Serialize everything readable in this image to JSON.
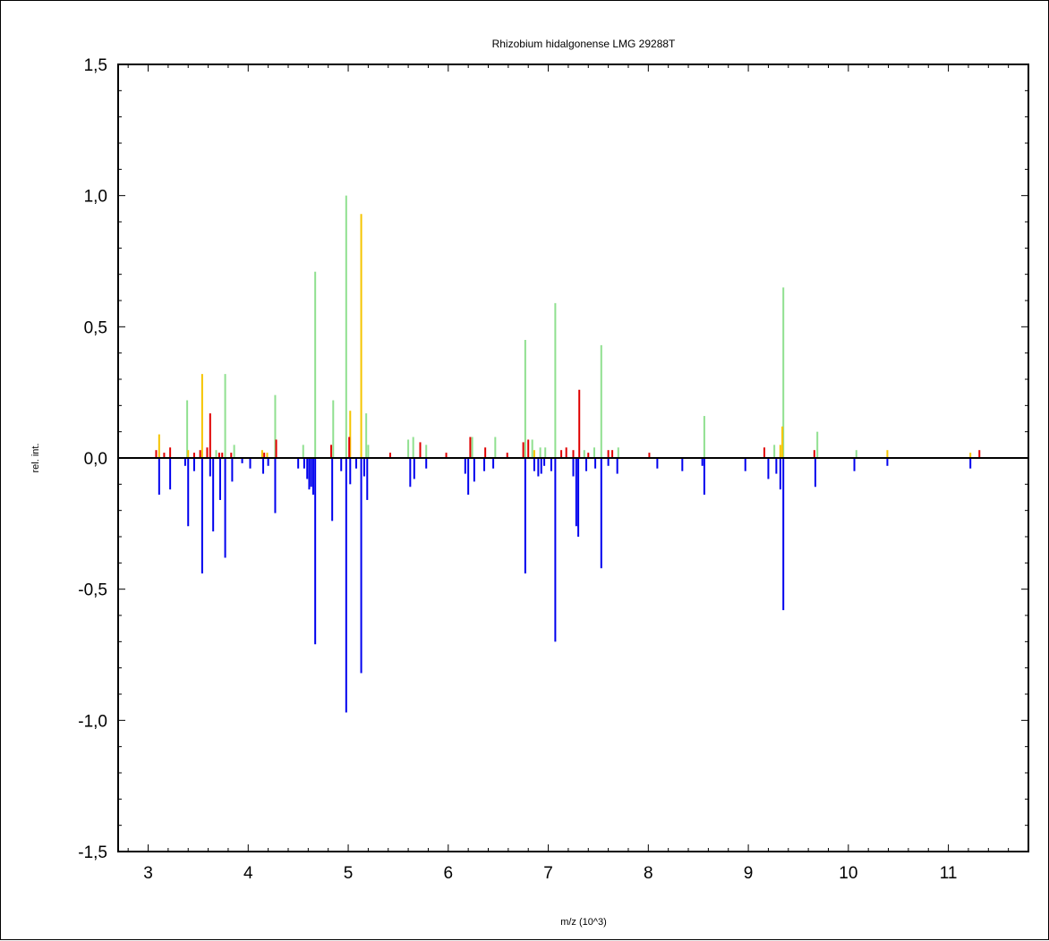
{
  "chart_data": {
    "type": "bar",
    "title": "Rhizobium hidalgonense LMG 29288T",
    "xlabel": "m/z (10^3)",
    "ylabel": "rel. int.",
    "xlim": [
      2.7,
      11.8
    ],
    "ylim": [
      -1.5,
      1.5
    ],
    "x_ticks": [
      3,
      4,
      5,
      6,
      7,
      8,
      9,
      10,
      11
    ],
    "x_tick_labels": [
      "3",
      "4",
      "5",
      "6",
      "7",
      "8",
      "9",
      "10",
      "11"
    ],
    "y_ticks": [
      1.5,
      1.0,
      0.5,
      0.0,
      -0.5,
      -1.0,
      -1.5
    ],
    "y_tick_labels": [
      "1,5",
      "1,0",
      "0,5",
      "0,0",
      "-0,5",
      "-1,0",
      "-1,5"
    ],
    "grid": false,
    "legend": "none",
    "colors": {
      "green": "#90e090",
      "yellow": "#f5c400",
      "red": "#e00000",
      "blue": "#0000ee",
      "axis": "#000000"
    },
    "series": [
      {
        "color_key": "green",
        "x": [
          3.39,
          3.68,
          3.77,
          3.86,
          4.27,
          4.55,
          4.67,
          4.85,
          4.98,
          5.18,
          5.2,
          5.6,
          5.65,
          5.78,
          6.24,
          6.47,
          6.77,
          6.84,
          6.92,
          6.97,
          7.07,
          7.36,
          7.46,
          7.53,
          7.7,
          8.56,
          9.26,
          9.35,
          9.69,
          10.08
        ],
        "values": [
          0.22,
          0.03,
          0.32,
          0.05,
          0.24,
          0.05,
          0.71,
          0.22,
          1.0,
          0.17,
          0.05,
          0.07,
          0.08,
          0.05,
          0.08,
          0.08,
          0.45,
          0.07,
          0.04,
          0.04,
          0.59,
          0.03,
          0.04,
          0.43,
          0.04,
          0.16,
          0.05,
          0.65,
          0.1,
          0.03
        ]
      },
      {
        "color_key": "yellow",
        "x": [
          3.11,
          3.4,
          3.54,
          4.14,
          4.19,
          5.02,
          5.13,
          6.86,
          9.32,
          9.34,
          10.39,
          11.22
        ],
        "values": [
          0.09,
          0.03,
          0.32,
          0.03,
          0.02,
          0.18,
          0.93,
          0.03,
          0.05,
          0.12,
          0.03,
          0.02
        ]
      },
      {
        "color_key": "red",
        "x": [
          3.08,
          3.16,
          3.22,
          3.46,
          3.52,
          3.59,
          3.62,
          3.71,
          3.74,
          3.83,
          4.16,
          4.28,
          4.83,
          5.01,
          5.42,
          5.72,
          5.98,
          6.22,
          6.37,
          6.59,
          6.75,
          6.8,
          7.13,
          7.18,
          7.25,
          7.31,
          7.4,
          7.6,
          7.64,
          8.01,
          9.16,
          9.66,
          11.31
        ],
        "values": [
          0.03,
          0.02,
          0.04,
          0.02,
          0.03,
          0.04,
          0.17,
          0.02,
          0.02,
          0.02,
          0.02,
          0.07,
          0.05,
          0.08,
          0.02,
          0.06,
          0.02,
          0.08,
          0.04,
          0.02,
          0.06,
          0.07,
          0.03,
          0.04,
          0.03,
          0.26,
          0.02,
          0.03,
          0.03,
          0.02,
          0.04,
          0.03,
          0.03
        ]
      },
      {
        "color_key": "blue",
        "x": [
          3.11,
          3.22,
          3.37,
          3.4,
          3.46,
          3.54,
          3.62,
          3.65,
          3.72,
          3.77,
          3.84,
          3.94,
          4.02,
          4.15,
          4.2,
          4.27,
          4.5,
          4.56,
          4.59,
          4.61,
          4.63,
          4.65,
          4.67,
          4.84,
          4.93,
          4.98,
          5.02,
          5.08,
          5.13,
          5.16,
          5.19,
          5.62,
          5.66,
          5.78,
          6.17,
          6.2,
          6.26,
          6.36,
          6.45,
          6.77,
          6.86,
          6.9,
          6.93,
          6.96,
          7.03,
          7.07,
          7.25,
          7.28,
          7.3,
          7.38,
          7.47,
          7.53,
          7.6,
          7.69,
          8.09,
          8.34,
          8.54,
          8.56,
          8.97,
          9.2,
          9.28,
          9.32,
          9.35,
          9.67,
          10.06,
          10.39,
          11.22
        ],
        "values": [
          -0.14,
          -0.12,
          -0.03,
          -0.26,
          -0.05,
          -0.44,
          -0.07,
          -0.28,
          -0.16,
          -0.38,
          -0.09,
          -0.02,
          -0.04,
          -0.06,
          -0.03,
          -0.21,
          -0.04,
          -0.04,
          -0.08,
          -0.12,
          -0.11,
          -0.14,
          -0.71,
          -0.24,
          -0.05,
          -0.97,
          -0.1,
          -0.04,
          -0.82,
          -0.07,
          -0.16,
          -0.11,
          -0.08,
          -0.04,
          -0.06,
          -0.14,
          -0.09,
          -0.05,
          -0.04,
          -0.44,
          -0.05,
          -0.07,
          -0.06,
          -0.03,
          -0.05,
          -0.7,
          -0.07,
          -0.26,
          -0.3,
          -0.05,
          -0.04,
          -0.42,
          -0.03,
          -0.06,
          -0.04,
          -0.05,
          -0.03,
          -0.14,
          -0.05,
          -0.08,
          -0.06,
          -0.12,
          -0.58,
          -0.11,
          -0.05,
          -0.03,
          -0.04
        ]
      }
    ]
  }
}
